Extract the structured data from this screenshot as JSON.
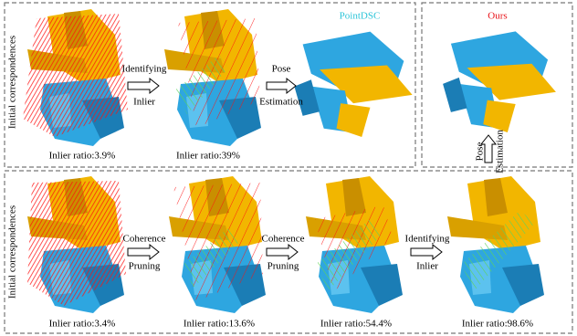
{
  "top_panel": {
    "row_label": "Initial correspondences",
    "steps": [
      {
        "line1": "Identifying",
        "line2": "Inlier"
      },
      {
        "line1": "Pose",
        "line2": "Estimation"
      }
    ],
    "ratios": [
      "Inlier ratio:3.9%",
      "Inlier ratio:39%"
    ],
    "method_label": "PointDSC"
  },
  "right_panel": {
    "method_label": "Ours",
    "step": {
      "line1": "Pose",
      "line2": "Estimation"
    }
  },
  "bottom_panel": {
    "row_label": "Initial correspondences",
    "steps": [
      {
        "line1": "Coherence",
        "line2": "Pruning"
      },
      {
        "line1": "Coherence",
        "line2": "Pruning"
      },
      {
        "line1": "Identifying",
        "line2": "Inlier"
      }
    ],
    "ratios": [
      "Inlier ratio:3.4%",
      "Inlier ratio:13.6%",
      "Inlier ratio:54.4%",
      "Inlier ratio:98.6%"
    ]
  }
}
